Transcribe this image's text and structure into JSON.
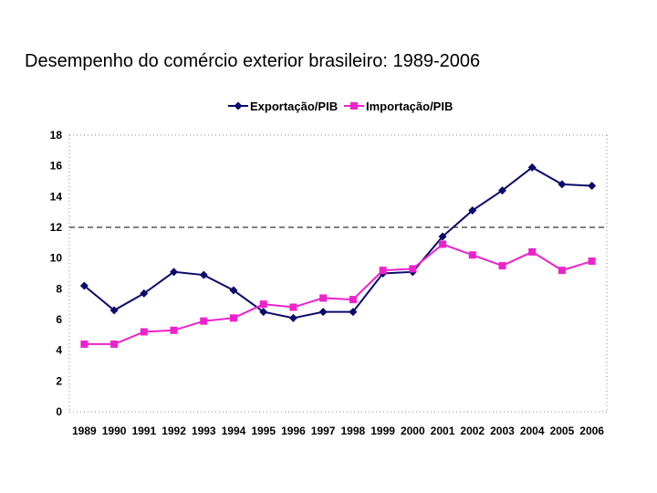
{
  "page": {
    "title": "Desempenho do comércio exterior brasileiro: 1989-2006"
  },
  "chart_data": {
    "type": "line",
    "title": "Desempenho do comércio exterior brasileiro: 1989-2006",
    "xlabel": "",
    "ylabel": "",
    "categories": [
      "1989",
      "1990",
      "1991",
      "1992",
      "1993",
      "1994",
      "1995",
      "1996",
      "1997",
      "1998",
      "1999",
      "2000",
      "2001",
      "2002",
      "2003",
      "2004",
      "2005",
      "2006"
    ],
    "ylim": [
      0,
      18
    ],
    "yticks": [
      0,
      2,
      4,
      6,
      8,
      10,
      12,
      14,
      16,
      18
    ],
    "grid": "dotted border",
    "reference_line": {
      "y": 12,
      "style": "dashed"
    },
    "legend_position": "top-center",
    "series": [
      {
        "name": "Exportação/PIB",
        "color": "#0a0a6b",
        "marker": "diamond",
        "values": [
          8.2,
          6.6,
          7.7,
          9.1,
          8.9,
          7.9,
          6.5,
          6.1,
          6.5,
          6.5,
          9.0,
          9.1,
          11.4,
          13.1,
          14.4,
          15.9,
          14.8,
          14.7
        ]
      },
      {
        "name": "Importação/PIB",
        "color": "#ee22cc",
        "marker": "square",
        "values": [
          4.4,
          4.4,
          5.2,
          5.3,
          5.9,
          6.1,
          7.0,
          6.8,
          7.4,
          7.3,
          9.2,
          9.3,
          10.9,
          10.2,
          9.5,
          10.4,
          9.2,
          9.8
        ]
      }
    ]
  }
}
